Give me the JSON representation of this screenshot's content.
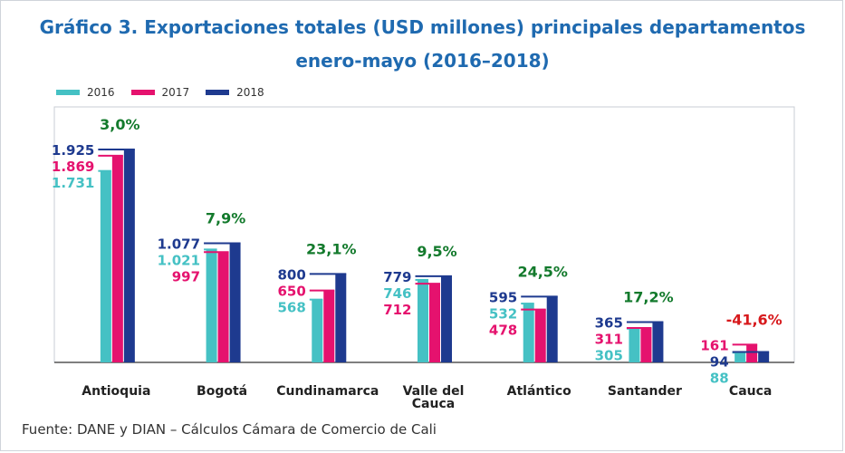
{
  "title_line1": "Gráfico 3. Exportaciones totales (USD millones) principales departamentos",
  "title_line2": "enero-mayo (2016–2018)",
  "source": "Fuente: DANE y DIAN – Cálculos Cámara de Comercio de Cali",
  "colors": {
    "2016": "#45c1c4",
    "2017": "#e5126e",
    "2018": "#1e3a8f",
    "pct_pos": "#137a2c",
    "pct_neg": "#d7191c"
  },
  "chart_data": {
    "type": "bar",
    "title": "Gráfico 3. Exportaciones totales (USD millones) principales departamentos enero-mayo (2016–2018)",
    "xlabel": "",
    "ylabel": "",
    "ylim": [
      0,
      2000
    ],
    "grid": false,
    "legend_position": "top-left",
    "categories": [
      "Antioquia",
      "Bogotá",
      "Cundinamarca",
      "Valle del Cauca",
      "Atlántico",
      "Santander",
      "Cauca"
    ],
    "category_lines": [
      [
        "Antioquia"
      ],
      [
        "Bogotá"
      ],
      [
        "Cundinamarca"
      ],
      [
        "Valle del",
        "Cauca"
      ],
      [
        "Atlántico"
      ],
      [
        "Santander"
      ],
      [
        "Cauca"
      ]
    ],
    "series": [
      {
        "name": "2016",
        "values": [
          1731,
          1021,
          568,
          746,
          532,
          305,
          88
        ],
        "labels": [
          "1.731",
          "1.021",
          "568",
          "746",
          "532",
          "305",
          "88"
        ]
      },
      {
        "name": "2017",
        "values": [
          1869,
          997,
          650,
          712,
          478,
          311,
          161
        ],
        "labels": [
          "1.869",
          "997",
          "650",
          "712",
          "478",
          "311",
          "161"
        ]
      },
      {
        "name": "2018",
        "values": [
          1925,
          1077,
          800,
          779,
          595,
          365,
          94
        ],
        "labels": [
          "1.925",
          "1.077",
          "800",
          "779",
          "595",
          "365",
          "94"
        ]
      }
    ],
    "growth": [
      "3,0%",
      "7,9%",
      "23,1%",
      "9,5%",
      "24,5%",
      "17,2%",
      "-41,6%"
    ]
  }
}
